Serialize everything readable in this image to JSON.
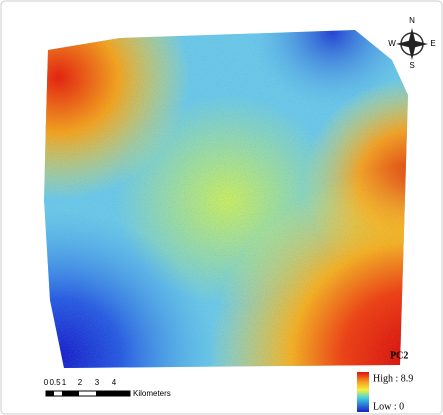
{
  "compass": {
    "north": "N",
    "east": "E",
    "south": "S",
    "west": "W"
  },
  "legend": {
    "title": "PC2",
    "high": "High : 8.9",
    "low": "Low : 0"
  },
  "scale_bar": {
    "labels": [
      "0",
      "0.5",
      "1",
      "2",
      "3",
      "4"
    ],
    "unit": "Kilometers"
  }
}
